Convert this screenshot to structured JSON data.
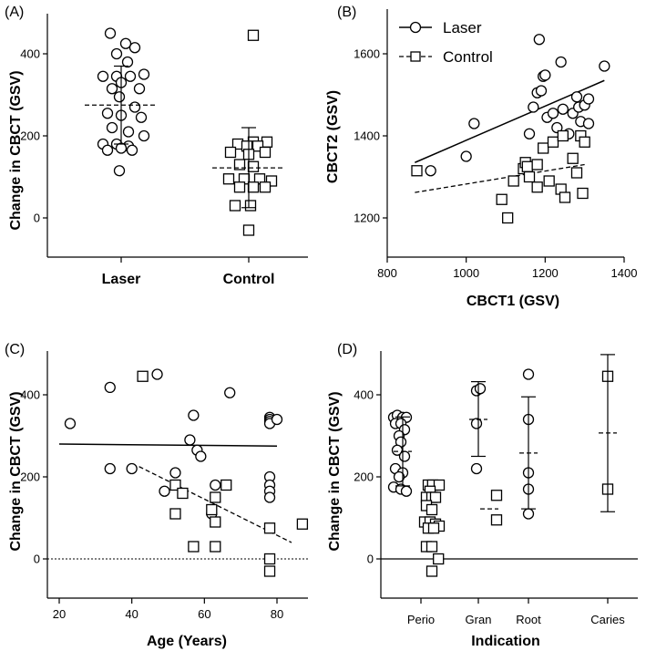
{
  "figure": {
    "panels": [
      "(A)",
      "(B)",
      "(C)",
      "(D)"
    ]
  },
  "chart_data": [
    {
      "panel": "(A)",
      "type": "scatter",
      "title": "",
      "xlabel": "",
      "ylabel": "Change in CBCT (GSV)",
      "categories": [
        "Laser",
        "Control"
      ],
      "ylim": [
        -60,
        480
      ],
      "yticks": [
        0,
        200,
        400
      ],
      "series": [
        {
          "name": "Laser",
          "marker": "circle",
          "points": [
            [
              -0.12,
              450
            ],
            [
              0.05,
              425
            ],
            [
              0.15,
              415
            ],
            [
              -0.05,
              400
            ],
            [
              0.07,
              380
            ],
            [
              -0.2,
              345
            ],
            [
              -0.05,
              345
            ],
            [
              0.1,
              345
            ],
            [
              0.25,
              350
            ],
            [
              0.0,
              330
            ],
            [
              -0.1,
              315
            ],
            [
              0.2,
              315
            ],
            [
              -0.02,
              295
            ],
            [
              0.15,
              270
            ],
            [
              -0.15,
              255
            ],
            [
              0.0,
              250
            ],
            [
              0.22,
              245
            ],
            [
              -0.1,
              220
            ],
            [
              0.08,
              210
            ],
            [
              0.25,
              200
            ],
            [
              -0.2,
              180
            ],
            [
              -0.05,
              180
            ],
            [
              0.08,
              175
            ],
            [
              -0.15,
              165
            ],
            [
              0.0,
              170
            ],
            [
              0.12,
              165
            ],
            [
              -0.02,
              115
            ]
          ],
          "mean": 275,
          "sd_low": 180,
          "sd_high": 370
        },
        {
          "name": "Control",
          "marker": "square",
          "points": [
            [
              0.05,
              445
            ],
            [
              -0.12,
              180
            ],
            [
              0.05,
              185
            ],
            [
              0.2,
              185
            ],
            [
              -0.02,
              175
            ],
            [
              0.1,
              175
            ],
            [
              -0.2,
              160
            ],
            [
              0.18,
              160
            ],
            [
              0.0,
              155
            ],
            [
              -0.1,
              130
            ],
            [
              0.05,
              125
            ],
            [
              -0.22,
              95
            ],
            [
              -0.05,
              95
            ],
            [
              0.12,
              95
            ],
            [
              0.25,
              90
            ],
            [
              -0.1,
              75
            ],
            [
              0.05,
              75
            ],
            [
              0.18,
              75
            ],
            [
              -0.15,
              30
            ],
            [
              0.02,
              30
            ],
            [
              0.0,
              -30
            ]
          ],
          "mean": 122,
          "sd_low": 25,
          "sd_high": 220
        }
      ]
    },
    {
      "panel": "(B)",
      "type": "scatter",
      "title": "",
      "xlabel": "CBCT1 (GSV)",
      "ylabel": "CBCT2 (GSV)",
      "xlim": [
        800,
        1400
      ],
      "ylim": [
        1140,
        1720
      ],
      "xticks": [
        800,
        1000,
        1200,
        1400
      ],
      "yticks": [
        1200,
        1400,
        1600
      ],
      "legend": {
        "position": "top-left",
        "entries": [
          "Laser",
          "Control"
        ]
      },
      "series": [
        {
          "name": "Laser",
          "marker": "circle",
          "points": [
            [
              910,
              1315
            ],
            [
              1000,
              1350
            ],
            [
              1020,
              1430
            ],
            [
              1160,
              1405
            ],
            [
              1170,
              1470
            ],
            [
              1180,
              1505
            ],
            [
              1185,
              1635
            ],
            [
              1190,
              1510
            ],
            [
              1195,
              1545
            ],
            [
              1200,
              1548
            ],
            [
              1205,
              1445
            ],
            [
              1220,
              1455
            ],
            [
              1230,
              1420
            ],
            [
              1240,
              1580
            ],
            [
              1245,
              1465
            ],
            [
              1260,
              1405
            ],
            [
              1270,
              1455
            ],
            [
              1280,
              1495
            ],
            [
              1285,
              1470
            ],
            [
              1290,
              1435
            ],
            [
              1300,
              1475
            ],
            [
              1310,
              1430
            ],
            [
              1310,
              1490
            ],
            [
              1350,
              1570
            ]
          ],
          "fit": [
            [
              870,
              1335
            ],
            [
              1350,
              1535
            ]
          ]
        },
        {
          "name": "Control",
          "marker": "square",
          "points": [
            [
              875,
              1315
            ],
            [
              1090,
              1245
            ],
            [
              1105,
              1200
            ],
            [
              1120,
              1290
            ],
            [
              1145,
              1320
            ],
            [
              1150,
              1335
            ],
            [
              1155,
              1325
            ],
            [
              1160,
              1300
            ],
            [
              1180,
              1275
            ],
            [
              1180,
              1330
            ],
            [
              1195,
              1370
            ],
            [
              1210,
              1290
            ],
            [
              1220,
              1385
            ],
            [
              1240,
              1270
            ],
            [
              1245,
              1400
            ],
            [
              1250,
              1250
            ],
            [
              1270,
              1345
            ],
            [
              1280,
              1310
            ],
            [
              1290,
              1400
            ],
            [
              1295,
              1260
            ],
            [
              1300,
              1385
            ]
          ],
          "fit": [
            [
              870,
              1262
            ],
            [
              1300,
              1330
            ]
          ]
        }
      ]
    },
    {
      "panel": "(C)",
      "type": "scatter",
      "title": "",
      "xlabel": "Age (Years)",
      "ylabel": "Change in CBCT (GSV)",
      "xlim": [
        20,
        90
      ],
      "ylim": [
        -80,
        500
      ],
      "xticks": [
        20,
        40,
        60,
        80
      ],
      "yticks": [
        0,
        200,
        400
      ],
      "reference_line_y": 0,
      "series": [
        {
          "name": "Laser",
          "marker": "circle",
          "points": [
            [
              23,
              330
            ],
            [
              34,
              418
            ],
            [
              34,
              220
            ],
            [
              40,
              220
            ],
            [
              47,
              450
            ],
            [
              49,
              165
            ],
            [
              52,
              210
            ],
            [
              56,
              290
            ],
            [
              57,
              350
            ],
            [
              58,
              265
            ],
            [
              59,
              250
            ],
            [
              62,
              110
            ],
            [
              63,
              180
            ],
            [
              67,
              405
            ],
            [
              78,
              345
            ],
            [
              78,
              340
            ],
            [
              78,
              335
            ],
            [
              78,
              330
            ],
            [
              78,
              200
            ],
            [
              78,
              180
            ],
            [
              78,
              165
            ],
            [
              78,
              150
            ],
            [
              80,
              340
            ]
          ],
          "fit": [
            [
              20,
              280
            ],
            [
              80,
              275
            ]
          ]
        },
        {
          "name": "Control",
          "marker": "square",
          "points": [
            [
              43,
              445
            ],
            [
              52,
              180
            ],
            [
              52,
              110
            ],
            [
              54,
              160
            ],
            [
              57,
              30
            ],
            [
              62,
              120
            ],
            [
              63,
              150
            ],
            [
              63,
              90
            ],
            [
              63,
              30
            ],
            [
              66,
              180
            ],
            [
              78,
              75
            ],
            [
              78,
              0
            ],
            [
              78,
              -30
            ],
            [
              87,
              85
            ]
          ],
          "fit": [
            [
              42,
              225
            ],
            [
              84,
              40
            ]
          ]
        }
      ]
    },
    {
      "panel": "(D)",
      "type": "scatter",
      "title": "",
      "xlabel": "Indication",
      "ylabel": "Change in CBCT (GSV)",
      "categories": [
        "Perio",
        "Gran",
        "Root",
        "Caries"
      ],
      "ylim": [
        -80,
        500
      ],
      "yticks": [
        0,
        200,
        400
      ],
      "reference_line_y": 0,
      "series": [
        {
          "name": "Laser",
          "marker": "circle",
          "groups": [
            {
              "category": "Perio",
              "points": [
                [
                  -0.25,
                  345
                ],
                [
                  -0.15,
                  350
                ],
                [
                  0.0,
                  345
                ],
                [
                  0.1,
                  345
                ],
                [
                  -0.2,
                  330
                ],
                [
                  -0.05,
                  330
                ],
                [
                  0.05,
                  315
                ],
                [
                  -0.1,
                  300
                ],
                [
                  -0.05,
                  285
                ],
                [
                  -0.15,
                  265
                ],
                [
                  0.05,
                  250
                ],
                [
                  -0.2,
                  220
                ],
                [
                  0.0,
                  210
                ],
                [
                  -0.1,
                  200
                ],
                [
                  -0.25,
                  175
                ],
                [
                  -0.05,
                  170
                ],
                [
                  0.1,
                  165
                ]
              ],
              "mean": 262,
              "sd_low": 178,
              "sd_high": 346
            },
            {
              "category": "Gran",
              "points": [
                [
                  -0.05,
                  410
                ],
                [
                  0.05,
                  415
                ],
                [
                  -0.05,
                  330
                ],
                [
                  -0.05,
                  220
                ]
              ],
              "mean": 340,
              "sd_low": 250,
              "sd_high": 432
            },
            {
              "category": "Root",
              "points": [
                [
                  0.0,
                  450
                ],
                [
                  0.0,
                  340
                ],
                [
                  0.0,
                  210
                ],
                [
                  0.0,
                  170
                ],
                [
                  0.0,
                  110
                ]
              ],
              "mean": 258,
              "sd_low": 122,
              "sd_high": 395
            },
            {
              "category": "Caries",
              "points": [],
              "mean": null
            }
          ]
        },
        {
          "name": "Control",
          "marker": "square",
          "groups": [
            {
              "category": "Perio",
              "points": [
                [
                  0.0,
                  180
                ],
                [
                  0.12,
                  180
                ],
                [
                  0.3,
                  180
                ],
                [
                  0.05,
                  165
                ],
                [
                  -0.05,
                  150
                ],
                [
                  0.1,
                  150
                ],
                [
                  0.2,
                  150
                ],
                [
                  -0.05,
                  130
                ],
                [
                  0.1,
                  120
                ],
                [
                  -0.1,
                  90
                ],
                [
                  0.05,
                  90
                ],
                [
                  0.2,
                  85
                ],
                [
                  0.3,
                  80
                ],
                [
                  0.0,
                  75
                ],
                [
                  0.15,
                  75
                ],
                [
                  -0.05,
                  30
                ],
                [
                  0.1,
                  30
                ],
                [
                  0.28,
                  0
                ],
                [
                  0.1,
                  -30
                ]
              ],
              "mean": null
            },
            {
              "category": "Gran",
              "points": [
                [
                  0.2,
                  155
                ],
                [
                  0.2,
                  95
                ]
              ],
              "mean": 122,
              "sd_low": null,
              "sd_high": null
            },
            {
              "category": "Root",
              "points": [],
              "mean": null
            },
            {
              "category": "Caries",
              "points": [
                [
                  0.0,
                  445
                ],
                [
                  0.0,
                  170
                ]
              ],
              "mean": 307,
              "sd_low": 115,
              "sd_high": 498
            }
          ]
        }
      ]
    }
  ]
}
